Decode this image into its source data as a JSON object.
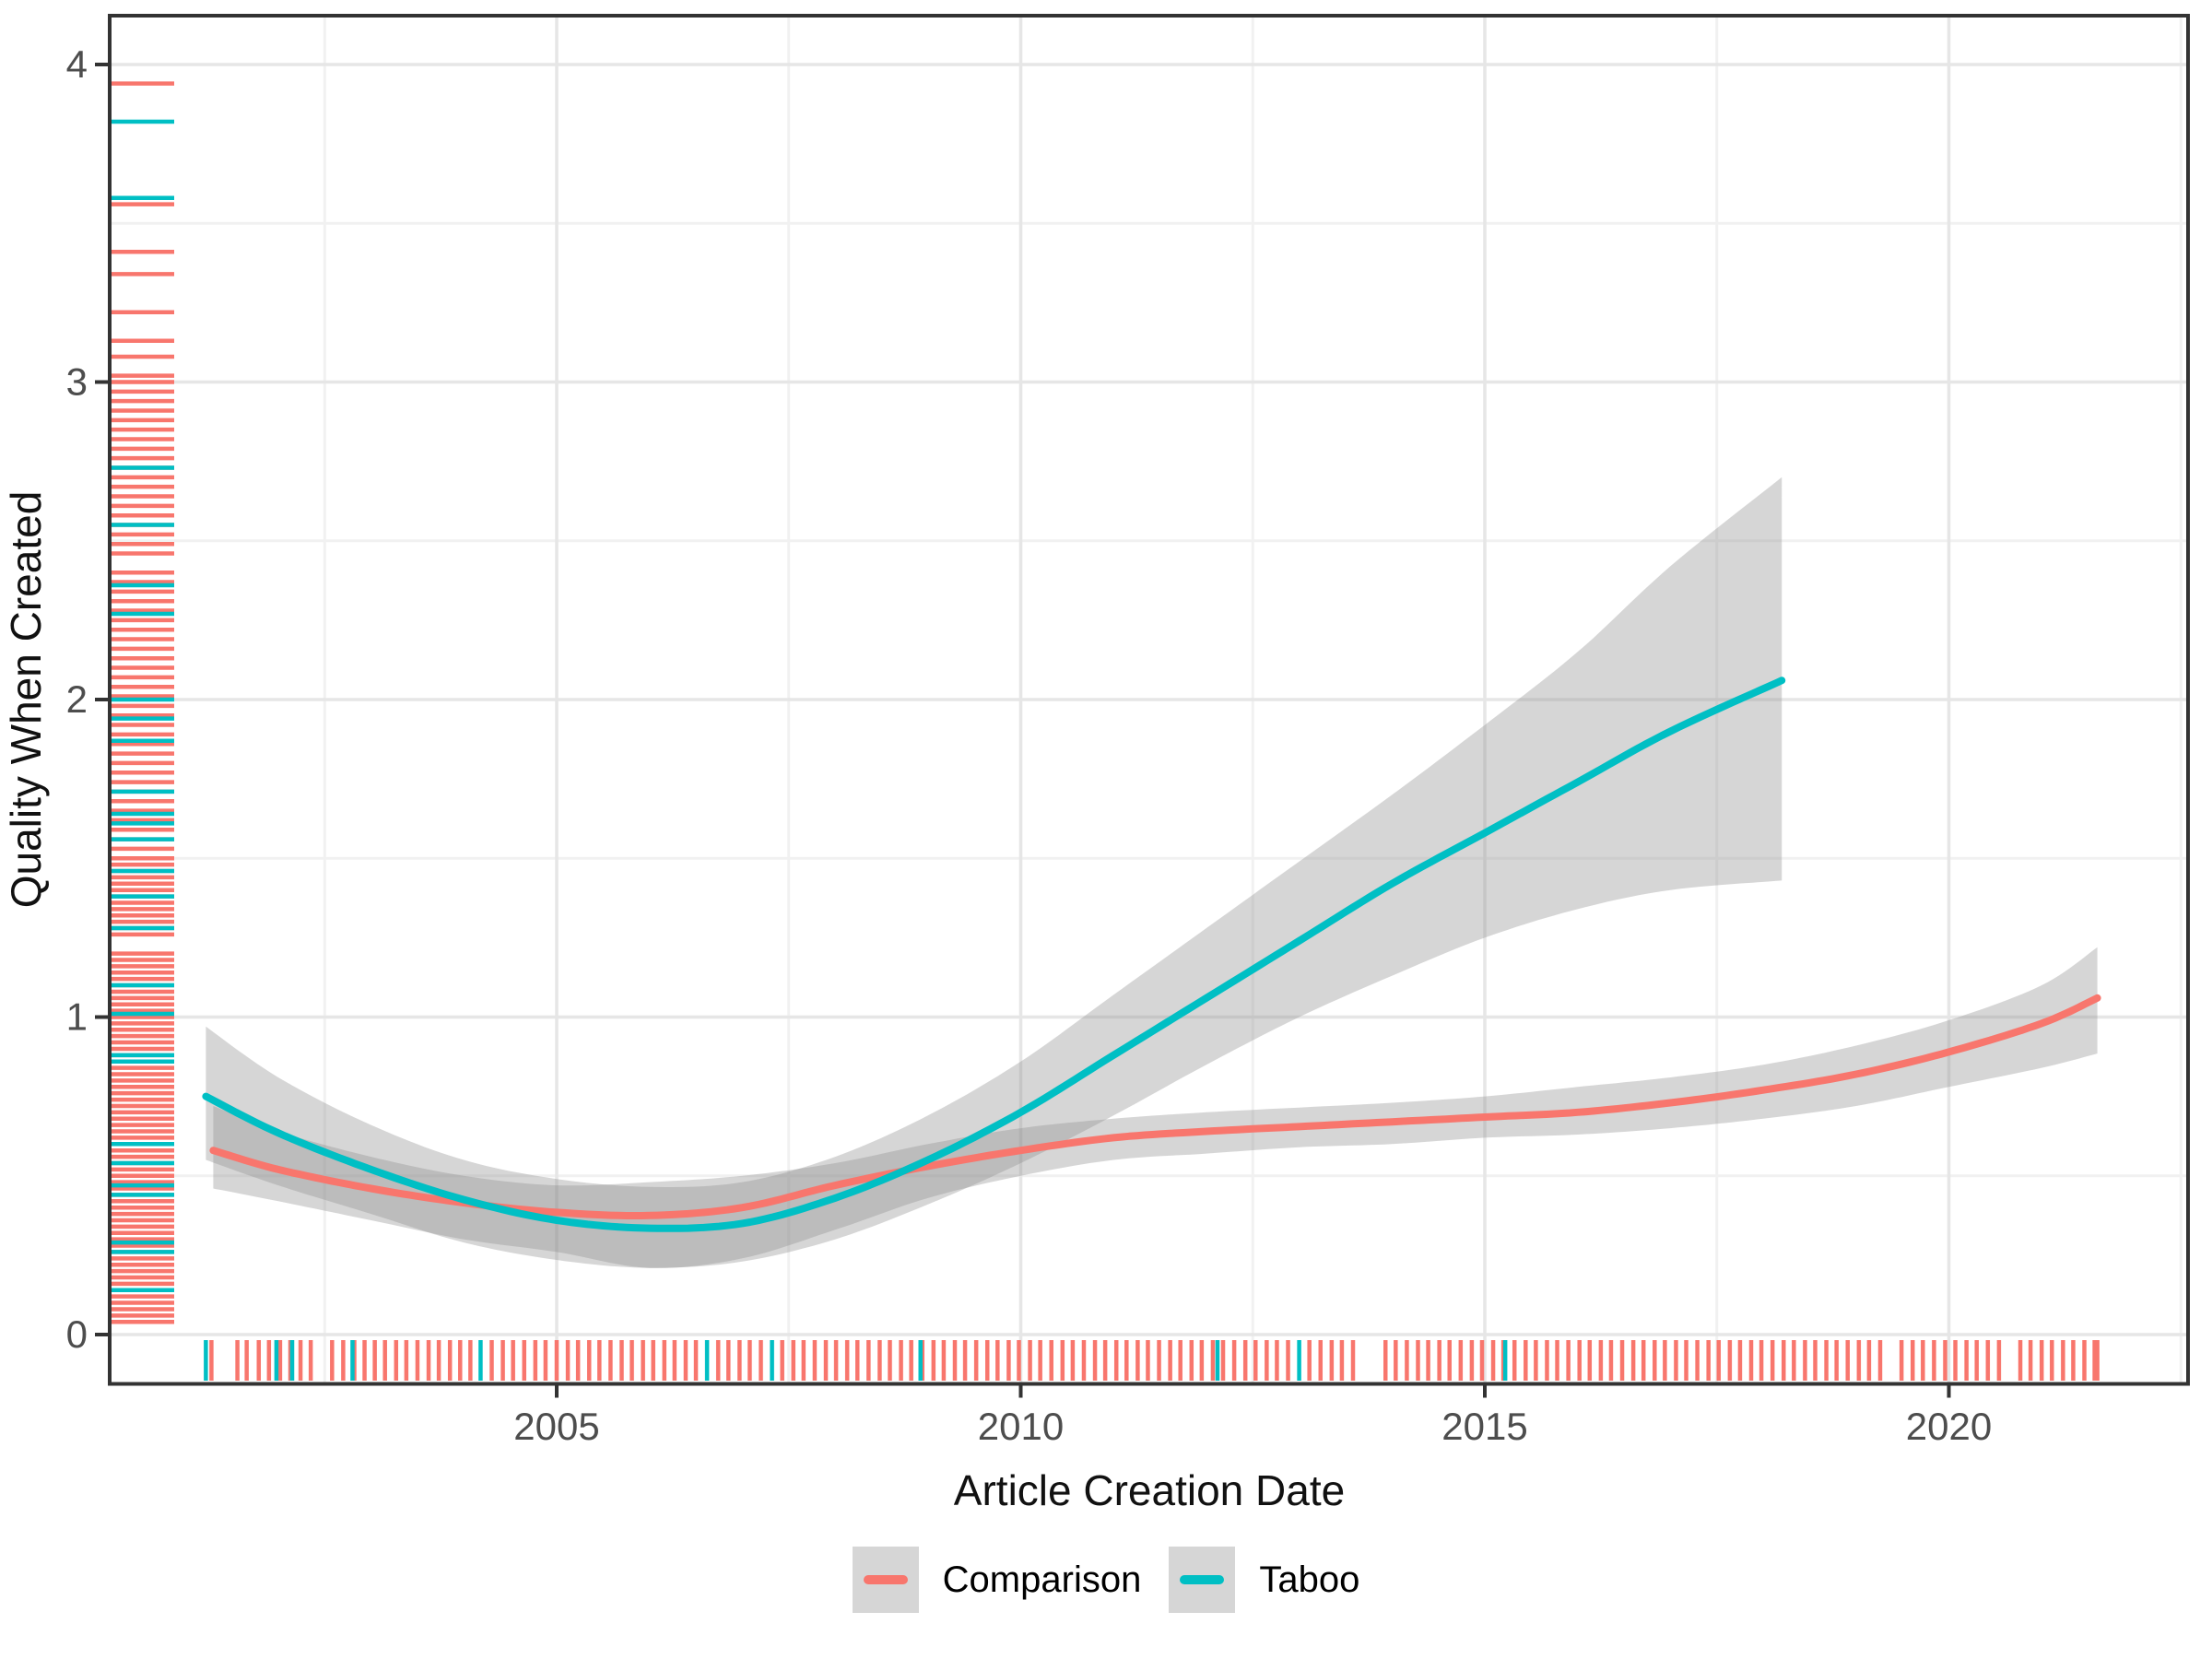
{
  "figure": {
    "background": "#FFFFFF",
    "panel_border_color": "#333333",
    "grid_major_color": "#E6E6E6",
    "grid_minor_color": "#F1F1F1",
    "tick_color": "#333333",
    "tick_label_color": "#4D4D4D",
    "ribbon_color": "#8C8C8C",
    "ribbon_opacity": 0.36
  },
  "legend": {
    "position": "bottom",
    "key_fill": "#D6D6D6",
    "items": [
      {
        "label": "Comparison",
        "color": "#F8766D"
      },
      {
        "label": "Taboo",
        "color": "#00BFC4"
      }
    ]
  },
  "chart_data": {
    "type": "line",
    "title": "",
    "xlabel": "Article Creation Date",
    "ylabel": "Quality When Created",
    "grid": true,
    "legend_position": "bottom",
    "x_axis": {
      "ticks": [
        2005,
        2010,
        2015,
        2020
      ],
      "minor_ticks": [
        2002.5,
        2007.5,
        2012.5,
        2017.5,
        2022.5
      ],
      "range": [
        2000.2,
        2022.6
      ]
    },
    "y_axis": {
      "ticks": [
        0,
        1,
        2,
        3,
        4
      ],
      "minor_ticks": [
        0.5,
        1.5,
        2.5,
        3.5
      ],
      "range": [
        -0.16,
        4.15
      ]
    },
    "series": [
      {
        "name": "Comparison",
        "color": "#F8766D",
        "x": [
          2001.3,
          2002,
          2003,
          2004,
          2005,
          2006,
          2007,
          2008,
          2009,
          2010,
          2011,
          2012,
          2013,
          2014,
          2015,
          2016,
          2017,
          2018,
          2019,
          2020,
          2021,
          2021.6
        ],
        "y": [
          0.58,
          0.52,
          0.46,
          0.415,
          0.385,
          0.375,
          0.4,
          0.47,
          0.53,
          0.58,
          0.62,
          0.64,
          0.655,
          0.67,
          0.685,
          0.7,
          0.73,
          0.77,
          0.82,
          0.89,
          0.98,
          1.06
        ],
        "ci_lower": [
          0.46,
          0.42,
          0.36,
          0.3,
          0.26,
          0.21,
          0.24,
          0.33,
          0.43,
          0.5,
          0.55,
          0.57,
          0.59,
          0.6,
          0.62,
          0.63,
          0.65,
          0.68,
          0.72,
          0.78,
          0.84,
          0.885
        ],
        "ci_upper": [
          0.72,
          0.64,
          0.56,
          0.5,
          0.47,
          0.48,
          0.5,
          0.54,
          0.6,
          0.65,
          0.68,
          0.7,
          0.715,
          0.73,
          0.75,
          0.78,
          0.81,
          0.85,
          0.91,
          0.99,
          1.1,
          1.22
        ]
      },
      {
        "name": "Taboo",
        "color": "#00BFC4",
        "x": [
          2001.22,
          2002,
          2003,
          2004,
          2005,
          2006,
          2007,
          2008,
          2009,
          2010,
          2011,
          2012,
          2013,
          2014,
          2015,
          2016,
          2017,
          2018.2
        ],
        "y": [
          0.75,
          0.635,
          0.52,
          0.425,
          0.36,
          0.335,
          0.35,
          0.43,
          0.55,
          0.7,
          0.88,
          1.06,
          1.24,
          1.42,
          1.58,
          1.74,
          1.9,
          2.06
        ],
        "ci_lower": [
          0.55,
          0.47,
          0.38,
          0.29,
          0.235,
          0.21,
          0.23,
          0.3,
          0.41,
          0.54,
          0.69,
          0.85,
          1.0,
          1.13,
          1.25,
          1.34,
          1.4,
          1.43
        ],
        "ci_upper": [
          0.97,
          0.81,
          0.66,
          0.55,
          0.49,
          0.465,
          0.48,
          0.56,
          0.69,
          0.86,
          1.07,
          1.28,
          1.49,
          1.7,
          1.92,
          2.15,
          2.42,
          2.7
        ]
      }
    ],
    "rug_x": {
      "Comparison": [
        2001.28,
        2001.56,
        2001.66,
        2001.79,
        2001.9,
        2002.02,
        2002.13,
        2002.24,
        2002.35,
        2002.58,
        2002.7,
        2002.82,
        2002.93,
        2003.04,
        2003.15,
        2003.27,
        2003.38,
        2003.5,
        2003.62,
        2003.73,
        2003.85,
        2003.96,
        2004.07,
        2004.3,
        2004.42,
        2004.53,
        2004.65,
        2004.77,
        2004.88,
        2005.0,
        2005.12,
        2005.23,
        2005.35,
        2005.46,
        2005.58,
        2005.7,
        2005.81,
        2005.93,
        2006.04,
        2006.16,
        2006.27,
        2006.39,
        2006.5,
        2006.74,
        2006.85,
        2006.97,
        2007.08,
        2007.2,
        2007.43,
        2007.55,
        2007.66,
        2007.78,
        2007.9,
        2008.01,
        2008.13,
        2008.24,
        2008.36,
        2008.48,
        2008.59,
        2008.71,
        2008.82,
        2008.94,
        2009.06,
        2009.17,
        2009.29,
        2009.4,
        2009.52,
        2009.64,
        2009.75,
        2009.87,
        2009.98,
        2010.1,
        2010.21,
        2010.33,
        2010.45,
        2010.56,
        2010.68,
        2010.8,
        2010.91,
        2011.03,
        2011.14,
        2011.26,
        2011.37,
        2011.49,
        2011.61,
        2011.72,
        2011.84,
        2011.95,
        2012.07,
        2012.18,
        2012.3,
        2012.42,
        2012.53,
        2012.65,
        2012.76,
        2012.88,
        2013.11,
        2013.23,
        2013.35,
        2013.46,
        2013.58,
        2013.93,
        2014.04,
        2014.16,
        2014.28,
        2014.39,
        2014.51,
        2014.62,
        2014.74,
        2014.86,
        2014.97,
        2015.09,
        2015.2,
        2015.32,
        2015.44,
        2015.55,
        2015.67,
        2015.78,
        2015.9,
        2016.02,
        2016.13,
        2016.25,
        2016.36,
        2016.48,
        2016.6,
        2016.71,
        2016.83,
        2016.94,
        2017.06,
        2017.17,
        2017.29,
        2017.41,
        2017.52,
        2017.64,
        2017.75,
        2017.87,
        2017.98,
        2018.1,
        2018.22,
        2018.33,
        2018.45,
        2018.56,
        2018.68,
        2018.79,
        2018.91,
        2019.03,
        2019.14,
        2019.26,
        2019.49,
        2019.61,
        2019.72,
        2019.84,
        2019.96,
        2020.07,
        2020.19,
        2020.3,
        2020.42,
        2020.54,
        2020.77,
        2020.88,
        2021.0,
        2021.11,
        2021.23,
        2021.34,
        2021.46,
        2021.57,
        2021.6
      ],
      "Taboo": [
        2001.22,
        2001.98,
        2002.15,
        2002.8,
        2004.18,
        2006.62,
        2007.32,
        2008.92,
        2012.12,
        2013.0,
        2015.22
      ]
    },
    "rug_y": {
      "Comparison": [
        0.04,
        0.06,
        0.08,
        0.1,
        0.12,
        0.14,
        0.16,
        0.18,
        0.2,
        0.22,
        0.24,
        0.26,
        0.28,
        0.3,
        0.32,
        0.34,
        0.36,
        0.38,
        0.4,
        0.42,
        0.44,
        0.46,
        0.48,
        0.5,
        0.52,
        0.54,
        0.56,
        0.58,
        0.6,
        0.62,
        0.64,
        0.66,
        0.68,
        0.7,
        0.72,
        0.74,
        0.76,
        0.78,
        0.8,
        0.82,
        0.84,
        0.86,
        0.88,
        0.9,
        0.92,
        0.94,
        0.96,
        0.98,
        1.0,
        1.02,
        1.04,
        1.06,
        1.08,
        1.1,
        1.12,
        1.14,
        1.16,
        1.18,
        1.2,
        1.26,
        1.28,
        1.3,
        1.32,
        1.34,
        1.36,
        1.38,
        1.4,
        1.42,
        1.44,
        1.46,
        1.48,
        1.5,
        1.53,
        1.56,
        1.59,
        1.62,
        1.65,
        1.68,
        1.71,
        1.74,
        1.77,
        1.8,
        1.83,
        1.86,
        1.89,
        1.92,
        1.95,
        1.98,
        2.01,
        2.04,
        2.07,
        2.1,
        2.13,
        2.16,
        2.19,
        2.22,
        2.25,
        2.28,
        2.31,
        2.34,
        2.37,
        2.4,
        2.46,
        2.49,
        2.52,
        2.55,
        2.58,
        2.61,
        2.64,
        2.67,
        2.7,
        2.73,
        2.76,
        2.79,
        2.82,
        2.85,
        2.88,
        2.91,
        2.94,
        2.97,
        3.0,
        3.02,
        3.08,
        3.13,
        3.22,
        3.34,
        3.41,
        3.56,
        3.94
      ],
      "Taboo": [
        3.82,
        3.58,
        2.73,
        2.55,
        2.36,
        2.27,
        2.0,
        1.94,
        1.87,
        1.71,
        1.64,
        1.61,
        1.56,
        1.46,
        1.38,
        1.28,
        1.1,
        1.01,
        0.88,
        0.86,
        0.6,
        0.54,
        0.47,
        0.44,
        0.29,
        0.26,
        0.14
      ]
    }
  }
}
